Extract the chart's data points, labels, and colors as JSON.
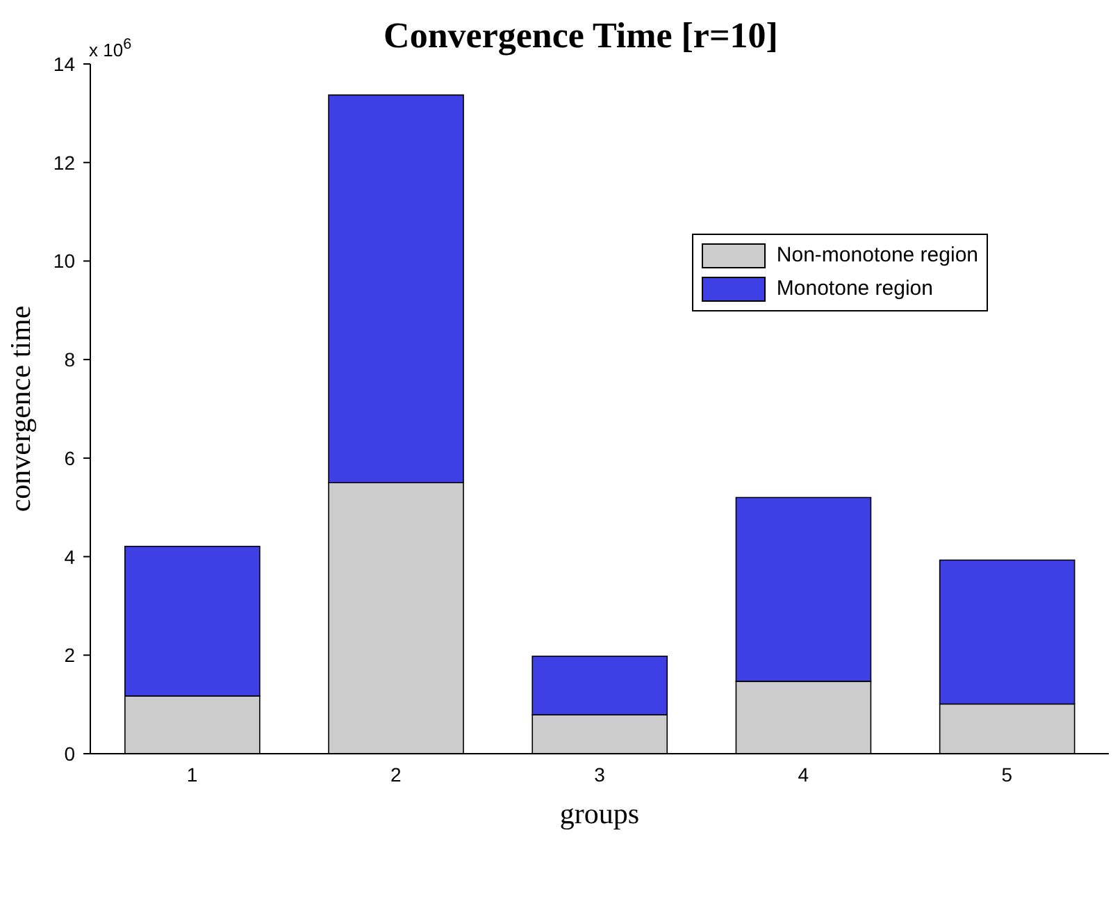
{
  "chart_data": {
    "type": "bar",
    "title": "Convergence Time [r=10]",
    "xlabel": "groups",
    "ylabel": "convergence time",
    "categories": [
      "1",
      "2",
      "3",
      "4",
      "5"
    ],
    "series": [
      {
        "name": "Non-monotone region",
        "color": "#cccccc",
        "values": [
          1.17,
          5.5,
          0.79,
          1.47,
          1.01
        ]
      },
      {
        "name": "Monotone region",
        "color": "#3f3fe6",
        "values": [
          3.04,
          7.87,
          1.19,
          3.73,
          2.92
        ]
      }
    ],
    "stacked": true,
    "ylim": [
      0,
      14
    ],
    "yticks": [
      0,
      2,
      4,
      6,
      8,
      10,
      12,
      14
    ],
    "legend": "top right",
    "annotations": [
      "x 10$^{6}$"
    ]
  }
}
